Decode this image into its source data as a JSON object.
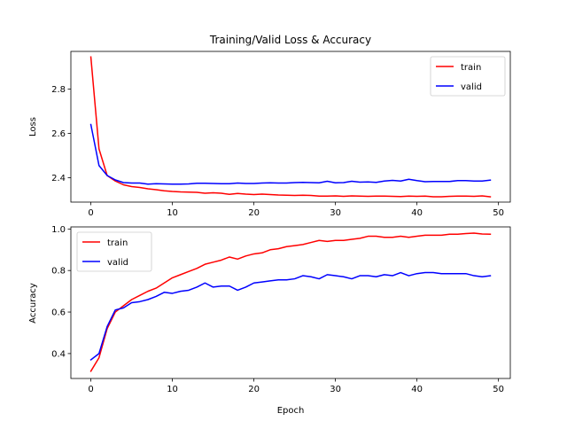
{
  "chart_data": [
    {
      "type": "line",
      "title": "Training/Valid Loss & Accuracy",
      "xlabel": "",
      "ylabel": "Loss",
      "xlim": [
        -2.45,
        51.45
      ],
      "ylim": [
        2.29,
        2.97
      ],
      "xticks": [
        0,
        10,
        20,
        30,
        40,
        50
      ],
      "xtick_labels": [
        "0",
        "10",
        "20",
        "30",
        "40",
        "50"
      ],
      "yticks": [
        2.4,
        2.6,
        2.8
      ],
      "ytick_labels": [
        "2.4",
        "2.6",
        "2.8"
      ],
      "legend": "top-right",
      "grid": false,
      "x": [
        0,
        1,
        2,
        3,
        4,
        5,
        6,
        7,
        8,
        9,
        10,
        11,
        12,
        13,
        14,
        15,
        16,
        17,
        18,
        19,
        20,
        21,
        22,
        23,
        24,
        25,
        26,
        27,
        28,
        29,
        30,
        31,
        32,
        33,
        34,
        35,
        36,
        37,
        38,
        39,
        40,
        41,
        42,
        43,
        44,
        45,
        46,
        47,
        48,
        49
      ],
      "series": [
        {
          "name": "train",
          "color": "#ff0000",
          "values": [
            2.945,
            2.53,
            2.41,
            2.385,
            2.368,
            2.36,
            2.356,
            2.35,
            2.346,
            2.341,
            2.338,
            2.336,
            2.335,
            2.334,
            2.33,
            2.332,
            2.33,
            2.325,
            2.329,
            2.326,
            2.324,
            2.326,
            2.324,
            2.322,
            2.321,
            2.32,
            2.321,
            2.32,
            2.317,
            2.317,
            2.318,
            2.316,
            2.318,
            2.317,
            2.316,
            2.317,
            2.317,
            2.316,
            2.315,
            2.317,
            2.316,
            2.317,
            2.314,
            2.314,
            2.316,
            2.317,
            2.317,
            2.316,
            2.318,
            2.314
          ]
        },
        {
          "name": "valid",
          "color": "#0000ff",
          "values": [
            2.64,
            2.455,
            2.41,
            2.39,
            2.378,
            2.376,
            2.376,
            2.371,
            2.373,
            2.372,
            2.371,
            2.371,
            2.372,
            2.375,
            2.375,
            2.374,
            2.373,
            2.373,
            2.376,
            2.374,
            2.374,
            2.376,
            2.377,
            2.376,
            2.376,
            2.378,
            2.379,
            2.378,
            2.377,
            2.384,
            2.377,
            2.378,
            2.384,
            2.38,
            2.381,
            2.379,
            2.385,
            2.388,
            2.385,
            2.393,
            2.387,
            2.382,
            2.383,
            2.383,
            2.383,
            2.387,
            2.387,
            2.385,
            2.385,
            2.389
          ]
        }
      ]
    },
    {
      "type": "line",
      "title": "",
      "xlabel": "Epoch",
      "ylabel": "Accuracy",
      "xlim": [
        -2.45,
        51.45
      ],
      "ylim": [
        0.28,
        1.01
      ],
      "xticks": [
        0,
        10,
        20,
        30,
        40,
        50
      ],
      "xtick_labels": [
        "0",
        "10",
        "20",
        "30",
        "40",
        "50"
      ],
      "yticks": [
        0.4,
        0.6,
        0.8,
        1.0
      ],
      "ytick_labels": [
        "0.4",
        "0.6",
        "0.8",
        "1.0"
      ],
      "legend": "top-left",
      "grid": false,
      "x": [
        0,
        1,
        2,
        3,
        4,
        5,
        6,
        7,
        8,
        9,
        10,
        11,
        12,
        13,
        14,
        15,
        16,
        17,
        18,
        19,
        20,
        21,
        22,
        23,
        24,
        25,
        26,
        27,
        28,
        29,
        30,
        31,
        32,
        33,
        34,
        35,
        36,
        37,
        38,
        39,
        40,
        41,
        42,
        43,
        44,
        45,
        46,
        47,
        48,
        49
      ],
      "series": [
        {
          "name": "train",
          "color": "#ff0000",
          "values": [
            0.315,
            0.38,
            0.52,
            0.6,
            0.63,
            0.66,
            0.68,
            0.7,
            0.715,
            0.74,
            0.765,
            0.78,
            0.795,
            0.81,
            0.83,
            0.84,
            0.85,
            0.865,
            0.855,
            0.87,
            0.88,
            0.885,
            0.9,
            0.905,
            0.915,
            0.92,
            0.925,
            0.935,
            0.945,
            0.94,
            0.945,
            0.945,
            0.95,
            0.955,
            0.965,
            0.965,
            0.96,
            0.96,
            0.965,
            0.96,
            0.965,
            0.97,
            0.97,
            0.97,
            0.975,
            0.975,
            0.978,
            0.98,
            0.976,
            0.975
          ]
        },
        {
          "name": "valid",
          "color": "#0000ff",
          "values": [
            0.37,
            0.4,
            0.53,
            0.61,
            0.62,
            0.645,
            0.65,
            0.66,
            0.675,
            0.695,
            0.69,
            0.7,
            0.705,
            0.72,
            0.74,
            0.72,
            0.725,
            0.725,
            0.705,
            0.72,
            0.74,
            0.745,
            0.75,
            0.755,
            0.755,
            0.76,
            0.775,
            0.77,
            0.76,
            0.78,
            0.775,
            0.77,
            0.76,
            0.775,
            0.775,
            0.77,
            0.78,
            0.775,
            0.79,
            0.775,
            0.785,
            0.79,
            0.79,
            0.785,
            0.785,
            0.785,
            0.785,
            0.775,
            0.77,
            0.775
          ]
        }
      ]
    }
  ]
}
